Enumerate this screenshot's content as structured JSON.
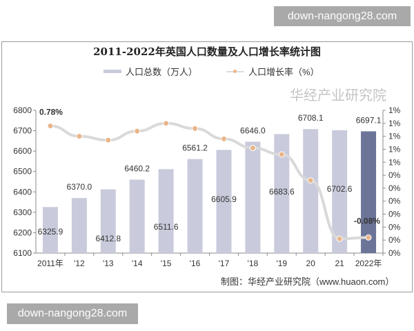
{
  "watermarks": [
    "down-nangong28.com",
    "down-nangong28.com"
  ],
  "chart_data": {
    "type": "bar+line",
    "title": "2011-2022年英国人口数量及人口增长率统计图",
    "categories": [
      "2011年",
      "'12",
      "'13",
      "'14",
      "'15",
      "'16",
      "'17",
      "'18",
      "'19",
      "20",
      "21",
      "2022年"
    ],
    "series": [
      {
        "name": "人口总数（万人）",
        "type": "bar",
        "axis": "left",
        "values": [
          6325.9,
          6370.0,
          6412.8,
          6460.2,
          6511.6,
          6561.2,
          6605.9,
          6646.0,
          6683.6,
          6708.1,
          6702.6,
          6697.1
        ],
        "data_labels": [
          "6325.9",
          "6370.0",
          "6412.8",
          "6460.2",
          "6511.6",
          "6561.2",
          "6605.9",
          "6646.0",
          "6683.6",
          "6708.1",
          "6702.6",
          "6697.1"
        ]
      },
      {
        "name": "人口增长率（%）",
        "type": "line",
        "axis": "right",
        "values": [
          0.78,
          0.7,
          0.67,
          0.74,
          0.8,
          0.76,
          0.68,
          0.61,
          0.56,
          0.36,
          -0.09,
          -0.08
        ],
        "data_labels": [
          "0.78%",
          "",
          "",
          "",
          "",
          "",
          "",
          "",
          "",
          "",
          "",
          "-0.08%"
        ]
      }
    ],
    "y_left": {
      "range": [
        6100,
        6800
      ],
      "ticks": [
        "6800",
        "6700",
        "6600",
        "6500",
        "6400",
        "6300",
        "6200",
        "6100"
      ]
    },
    "y_right": {
      "range": [
        -0.2,
        0.9
      ],
      "ticks": [
        "1%",
        "1%",
        "1%",
        "1%",
        "1%",
        "0%",
        "0%",
        "0%",
        "0%",
        "0%",
        "0%",
        "0%"
      ]
    },
    "legend_position": "top",
    "grid": false,
    "colors": {
      "bar": "#c9cbdc",
      "bar_highlight": "#6c7598",
      "line": "#d9d9d9",
      "marker": "#e9b58a"
    },
    "watermark_text": "华经产业研究院",
    "source": "制图：华经产业研究院（www.huaon.com）"
  }
}
